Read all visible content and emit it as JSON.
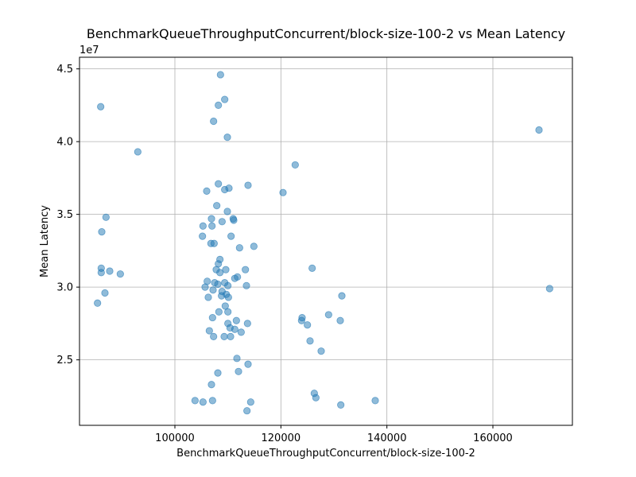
{
  "chart_data": {
    "type": "scatter",
    "title": "BenchmarkQueueThroughputConcurrent/block-size-100-2 vs Mean Latency",
    "xlabel": "BenchmarkQueueThroughputConcurrent/block-size-100-2",
    "ylabel": "Mean Latency",
    "y_scale_label": "1e7",
    "xlim": [
      82000,
      175000
    ],
    "ylim": [
      20500000,
      45800000
    ],
    "x_ticks": [
      100000,
      120000,
      140000,
      160000
    ],
    "x_tick_labels": [
      "100000",
      "120000",
      "140000",
      "160000"
    ],
    "y_ticks": [
      25000000,
      30000000,
      35000000,
      40000000,
      45000000
    ],
    "y_tick_labels": [
      "2.5",
      "3.0",
      "3.5",
      "4.0",
      "4.5"
    ],
    "grid": true,
    "marker_color": "#1f77b4",
    "marker_alpha": 0.5,
    "points": [
      [
        86000,
        42400000
      ],
      [
        93000,
        39300000
      ],
      [
        108600,
        44600000
      ],
      [
        109400,
        42900000
      ],
      [
        108200,
        42500000
      ],
      [
        107300,
        41400000
      ],
      [
        109900,
        40300000
      ],
      [
        168700,
        40800000
      ],
      [
        122700,
        38400000
      ],
      [
        113800,
        37000000
      ],
      [
        120400,
        36500000
      ],
      [
        108200,
        37100000
      ],
      [
        109400,
        36700000
      ],
      [
        110200,
        36800000
      ],
      [
        106000,
        36600000
      ],
      [
        87000,
        34800000
      ],
      [
        107900,
        35600000
      ],
      [
        109900,
        35200000
      ],
      [
        106900,
        34700000
      ],
      [
        108900,
        34500000
      ],
      [
        111000,
        34700000
      ],
      [
        111100,
        34600000
      ],
      [
        86200,
        33800000
      ],
      [
        105300,
        34200000
      ],
      [
        107000,
        34200000
      ],
      [
        105200,
        33500000
      ],
      [
        110600,
        33500000
      ],
      [
        106800,
        33000000
      ],
      [
        107400,
        33000000
      ],
      [
        112200,
        32700000
      ],
      [
        114900,
        32800000
      ],
      [
        108500,
        31900000
      ],
      [
        108200,
        31600000
      ],
      [
        86100,
        31300000
      ],
      [
        87700,
        31100000
      ],
      [
        86100,
        31000000
      ],
      [
        89700,
        30900000
      ],
      [
        107800,
        31200000
      ],
      [
        108500,
        31000000
      ],
      [
        109600,
        31200000
      ],
      [
        113300,
        31200000
      ],
      [
        125900,
        31300000
      ],
      [
        111300,
        30600000
      ],
      [
        111800,
        30700000
      ],
      [
        106100,
        30400000
      ],
      [
        107500,
        30300000
      ],
      [
        108100,
        30200000
      ],
      [
        105700,
        30000000
      ],
      [
        109400,
        30300000
      ],
      [
        110000,
        30100000
      ],
      [
        113500,
        30100000
      ],
      [
        86800,
        29600000
      ],
      [
        107200,
        29800000
      ],
      [
        108900,
        29700000
      ],
      [
        109700,
        29500000
      ],
      [
        108800,
        29400000
      ],
      [
        106300,
        29300000
      ],
      [
        110100,
        29300000
      ],
      [
        170700,
        29900000
      ],
      [
        131500,
        29400000
      ],
      [
        85400,
        28900000
      ],
      [
        109500,
        28700000
      ],
      [
        108300,
        28300000
      ],
      [
        110000,
        28300000
      ],
      [
        129000,
        28100000
      ],
      [
        124000,
        27900000
      ],
      [
        107100,
        27900000
      ],
      [
        123900,
        27700000
      ],
      [
        111600,
        27700000
      ],
      [
        113700,
        27500000
      ],
      [
        110000,
        27500000
      ],
      [
        125000,
        27400000
      ],
      [
        131200,
        27700000
      ],
      [
        110400,
        27200000
      ],
      [
        111300,
        27100000
      ],
      [
        112500,
        26900000
      ],
      [
        106500,
        27000000
      ],
      [
        107300,
        26600000
      ],
      [
        109300,
        26600000
      ],
      [
        110500,
        26600000
      ],
      [
        125500,
        26300000
      ],
      [
        127600,
        25600000
      ],
      [
        111700,
        25100000
      ],
      [
        113800,
        24700000
      ],
      [
        108100,
        24100000
      ],
      [
        112000,
        24200000
      ],
      [
        106900,
        23300000
      ],
      [
        126300,
        22700000
      ],
      [
        126600,
        22400000
      ],
      [
        103800,
        22200000
      ],
      [
        105300,
        22100000
      ],
      [
        107100,
        22200000
      ],
      [
        114300,
        22100000
      ],
      [
        131300,
        21900000
      ],
      [
        137800,
        22200000
      ],
      [
        113600,
        21500000
      ]
    ]
  }
}
